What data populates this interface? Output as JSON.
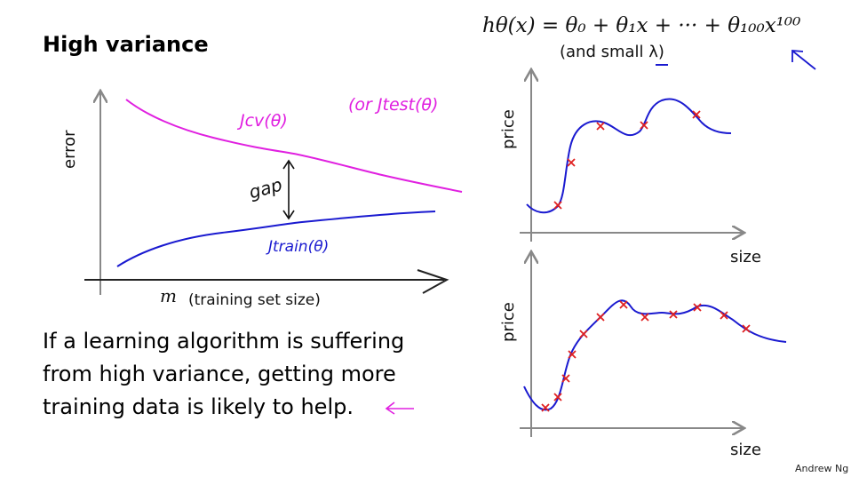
{
  "slide": {
    "title": "High variance",
    "formula": "hθ(x) = θ₀ + θ₁x + ··· + θ₁₀₀x¹⁰⁰",
    "formula_note": "(and small λ)",
    "body": "If a learning algorithm is suffering from high variance, getting more training data is likely to help.",
    "author": "Andrew Ng"
  },
  "learning_curve": {
    "ylabel": "error",
    "xlabel_symbol": "m",
    "xlabel": "(training set size)",
    "cv_label": "Jcv(θ)",
    "test_label": "(or Jtest(θ)",
    "train_label": "Jtrain(θ)",
    "gap_label": "gap"
  },
  "fit_plots": [
    {
      "ylabel": "price",
      "xlabel": "size"
    },
    {
      "ylabel": "price",
      "xlabel": "size"
    }
  ],
  "colors": {
    "cv": "#e020e0",
    "train": "#1a1ad0",
    "marks": "#e02020",
    "curve": "#1a1ad0"
  }
}
